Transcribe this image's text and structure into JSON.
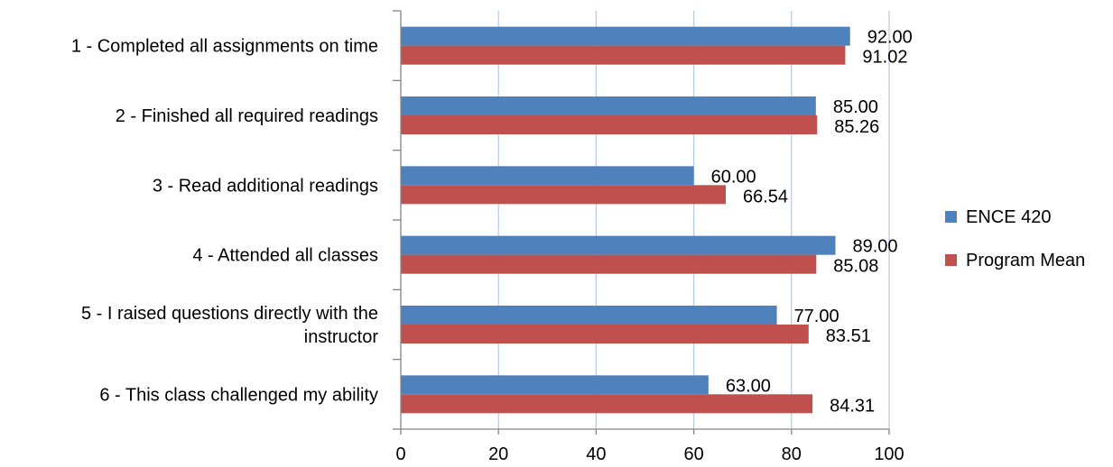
{
  "chart_data": {
    "type": "bar",
    "orientation": "horizontal",
    "categories": [
      [
        "1 - Completed all assignments on time"
      ],
      [
        "2 - Finished all required readings"
      ],
      [
        "3 - Read additional readings"
      ],
      [
        "4 - Attended all classes"
      ],
      [
        "5 - I raised questions directly with the",
        "instructor"
      ],
      [
        "6 - This class challenged my ability"
      ]
    ],
    "series": [
      {
        "name": "ENCE 420",
        "color": "#4f81bd",
        "values": [
          92.0,
          85.0,
          60.0,
          89.0,
          77.0,
          63.0
        ],
        "labels": [
          "92.00",
          "85.00",
          "60.00",
          "89.00",
          "77.00",
          "63.00"
        ]
      },
      {
        "name": "Program Mean",
        "color": "#c0504d",
        "values": [
          91.02,
          85.26,
          66.54,
          85.08,
          83.51,
          84.31
        ],
        "labels": [
          "91.02",
          "85.26",
          "66.54",
          "85.08",
          "83.51",
          "84.31"
        ]
      }
    ],
    "xlim": [
      0,
      100
    ],
    "xticks": [
      "0",
      "20",
      "40",
      "60",
      "80",
      "100"
    ],
    "grid": true,
    "grid_color": "#b9cde5",
    "legend_position": "right",
    "title": "",
    "xlabel": "",
    "ylabel": ""
  }
}
